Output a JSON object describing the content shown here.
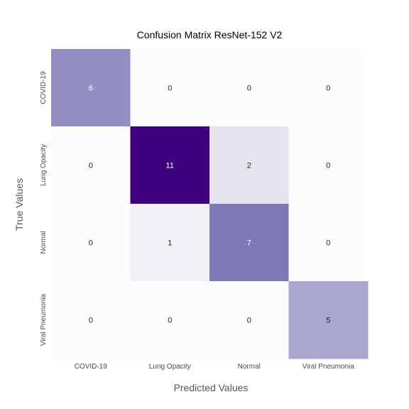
{
  "chart_data": {
    "type": "heatmap",
    "title": "Confusion Matrix ResNet-152 V2",
    "xlabel": "Predicted Values",
    "ylabel": "True Values",
    "x_categories": [
      "COVID-19",
      "Lung Opacity",
      "Normal",
      "Viral Pneumonia"
    ],
    "y_categories": [
      "COVID-19",
      "Lung Opacity",
      "Normal",
      "Viral Pneumonia"
    ],
    "values": [
      [
        6,
        0,
        0,
        0
      ],
      [
        0,
        11,
        2,
        0
      ],
      [
        0,
        1,
        7,
        0
      ],
      [
        0,
        0,
        0,
        5
      ]
    ],
    "colormap": "Purples",
    "color_low": "#fcfbfd",
    "color_high": "#3f007d",
    "vmin": 0,
    "vmax": 11,
    "colorbar": false,
    "grid": false
  }
}
